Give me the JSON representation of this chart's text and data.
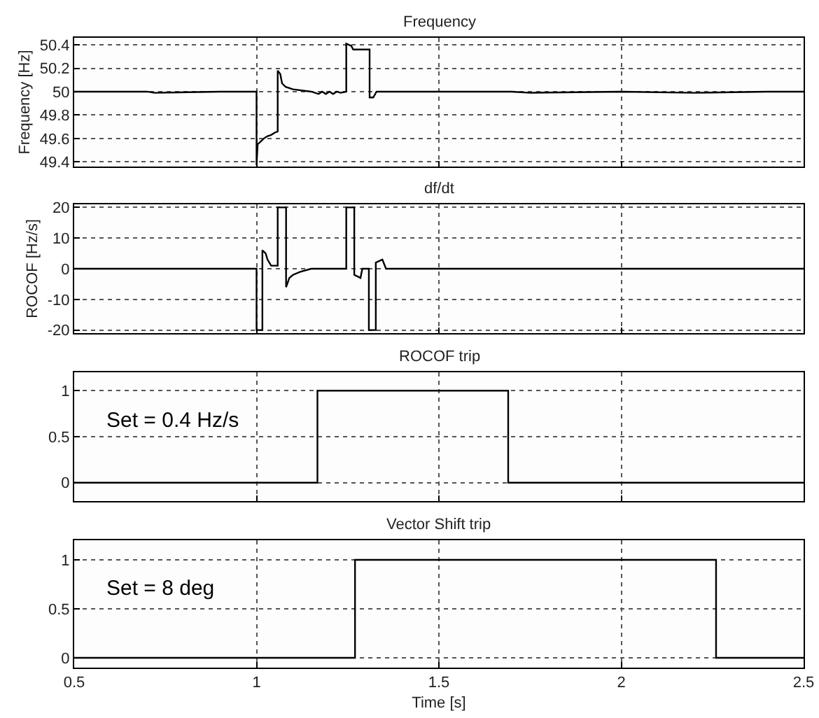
{
  "chart_data": [
    {
      "type": "line",
      "title": "Frequency",
      "ylabel": "Frequency [Hz]",
      "color": "#000000",
      "xlim": [
        0.5,
        2.5
      ],
      "xticks": [
        {
          "value": 0.5,
          "label": null
        },
        {
          "value": 1,
          "label": null
        },
        {
          "value": 1.5,
          "label": null
        },
        {
          "value": 2,
          "label": null
        },
        {
          "value": 2.5,
          "label": null
        }
      ],
      "ylim": [
        49.36,
        50.46
      ],
      "yticks": [
        49.4,
        49.6,
        49.8,
        50,
        50.2,
        50.4
      ],
      "grid": true,
      "tick_labels": "y",
      "x": [
        0.5,
        0.7,
        0.72,
        0.9,
        0.95,
        1.0,
        1.0,
        1.003,
        1.01,
        1.02,
        1.03,
        1.04,
        1.05,
        1.058,
        1.058,
        1.065,
        1.07,
        1.08,
        1.1,
        1.15,
        1.17,
        1.18,
        1.19,
        1.2,
        1.21,
        1.22,
        1.23,
        1.246,
        1.246,
        1.26,
        1.265,
        1.31,
        1.31,
        1.32,
        1.329,
        1.5,
        1.7,
        1.75,
        2.0,
        2.2,
        2.4,
        2.5
      ],
      "values": [
        50.0,
        50.0,
        49.99,
        50.0,
        50.0,
        50.0,
        49.37,
        49.55,
        49.57,
        49.6,
        49.62,
        49.63,
        49.65,
        49.66,
        50.18,
        50.15,
        50.07,
        50.04,
        50.02,
        50.0,
        49.98,
        50.0,
        49.98,
        50.0,
        49.98,
        50.0,
        49.99,
        50.0,
        50.41,
        50.39,
        50.36,
        50.36,
        49.95,
        49.95,
        50.0,
        50.0,
        50.0,
        49.99,
        50.0,
        49.99,
        50.0,
        50.0
      ]
    },
    {
      "type": "line",
      "title": "df/dt",
      "ylabel": "ROCOF [Hz/s]",
      "color": "#000000",
      "xlim": [
        0.5,
        2.5
      ],
      "xticks": [
        {
          "value": 0.5,
          "label": null
        },
        {
          "value": 1,
          "label": null
        },
        {
          "value": 1.5,
          "label": null
        },
        {
          "value": 2,
          "label": null
        },
        {
          "value": 2.5,
          "label": null
        }
      ],
      "ylim": [
        -21,
        21
      ],
      "yticks": [
        -20,
        -10,
        0,
        10,
        20
      ],
      "grid": true,
      "tick_labels": "y",
      "x": [
        0.5,
        1.0,
        1.0,
        1.016,
        1.016,
        1.025,
        1.03,
        1.04,
        1.058,
        1.058,
        1.081,
        1.081,
        1.09,
        1.1,
        1.12,
        1.15,
        1.2,
        1.246,
        1.246,
        1.268,
        1.268,
        1.285,
        1.29,
        1.308,
        1.308,
        1.327,
        1.327,
        1.345,
        1.355,
        1.37,
        1.5,
        2.0,
        2.5
      ],
      "values": [
        0,
        0,
        -20,
        -20,
        6,
        5,
        3,
        1,
        1,
        20,
        20,
        -6,
        -3,
        -2,
        -1,
        0,
        0,
        0,
        20,
        20,
        -2,
        -3,
        0,
        0,
        -20,
        -20,
        2,
        3,
        0,
        0,
        0,
        0,
        0
      ]
    },
    {
      "type": "line",
      "title": "ROCOF trip",
      "color": "#000000",
      "xlim": [
        0.5,
        2.5
      ],
      "xticks": [
        {
          "value": 0.5,
          "label": null
        },
        {
          "value": 1,
          "label": null
        },
        {
          "value": 1.5,
          "label": null
        },
        {
          "value": 2,
          "label": null
        },
        {
          "value": 2.5,
          "label": null
        }
      ],
      "ylim": [
        -0.2,
        1.2
      ],
      "yticks": [
        0,
        0.5,
        1
      ],
      "grid": true,
      "tick_labels": "y",
      "annotations": [
        "Set = 0.4 Hz/s"
      ],
      "x": [
        0.5,
        1.167,
        1.167,
        1.69,
        1.69,
        2.5
      ],
      "values": [
        0,
        0,
        1,
        1,
        0,
        0
      ]
    },
    {
      "type": "line",
      "title": "Vector Shift trip",
      "xlabel": "Time [s]",
      "color": "#000000",
      "xlim": [
        0.5,
        2.5
      ],
      "xticks": [
        0.5,
        1,
        1.5,
        2,
        2.5
      ],
      "ylim": [
        -0.1,
        1.2
      ],
      "yticks": [
        0,
        0.5,
        1
      ],
      "grid": true,
      "annotations": [
        "Set = 8 deg"
      ],
      "x": [
        0.5,
        1.27,
        1.27,
        2.26,
        2.26,
        2.5
      ],
      "values": [
        0,
        0,
        1,
        1,
        0,
        0
      ]
    }
  ]
}
